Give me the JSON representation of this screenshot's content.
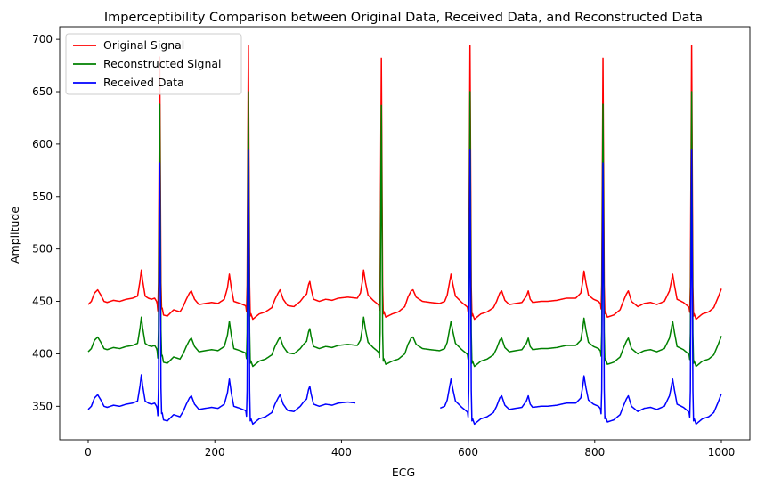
{
  "chart_data": {
    "type": "line",
    "title": "Imperceptibility Comparison between Original Data, Received  Data, and Reconstructed Data",
    "xlabel": "ECG",
    "ylabel": "Amplitude",
    "xlim": [
      -45,
      1045
    ],
    "ylim": [
      318,
      712
    ],
    "xticks": [
      0,
      200,
      400,
      600,
      800,
      1000
    ],
    "yticks": [
      350,
      400,
      450,
      500,
      550,
      600,
      650,
      700
    ],
    "grid": false,
    "legend_position": "top-left",
    "series": [
      {
        "name": "Original Signal",
        "color": "#ff0000",
        "offset": 100,
        "peaks": [
          [
            113,
            683
          ],
          [
            253,
            694
          ],
          [
            463,
            682
          ],
          [
            603,
            694
          ],
          [
            813,
            682
          ],
          [
            953,
            694
          ]
        ],
        "gaps": []
      },
      {
        "name": "Reconstructed Signal",
        "color": "#008000",
        "offset": 55,
        "peaks": [
          [
            113,
            638
          ],
          [
            253,
            650
          ],
          [
            463,
            637
          ],
          [
            603,
            650
          ],
          [
            813,
            638
          ],
          [
            953,
            650
          ]
        ],
        "gaps": []
      },
      {
        "name": "Received Data",
        "color": "#0000ff",
        "offset": 0,
        "peaks": [
          [
            113,
            582
          ],
          [
            253,
            595
          ],
          [
            603,
            595
          ],
          [
            813,
            582
          ],
          [
            953,
            595
          ]
        ],
        "gaps": [
          [
            422,
            556
          ]
        ]
      }
    ],
    "baseline_points": [
      [
        0,
        347
      ],
      [
        5,
        350
      ],
      [
        10,
        358
      ],
      [
        15,
        361
      ],
      [
        20,
        356
      ],
      [
        25,
        350
      ],
      [
        30,
        349
      ],
      [
        40,
        351
      ],
      [
        50,
        350
      ],
      [
        60,
        352
      ],
      [
        70,
        353
      ],
      [
        78,
        355
      ],
      [
        82,
        370
      ],
      [
        84,
        380
      ],
      [
        86,
        370
      ],
      [
        90,
        355
      ],
      [
        95,
        353
      ],
      [
        100,
        352
      ],
      [
        105,
        353
      ],
      [
        108,
        350
      ],
      [
        110,
        345
      ],
      [
        116,
        347
      ],
      [
        119,
        337
      ],
      [
        125,
        336
      ],
      [
        135,
        342
      ],
      [
        145,
        340
      ],
      [
        150,
        345
      ],
      [
        155,
        352
      ],
      [
        160,
        358
      ],
      [
        163,
        360
      ],
      [
        168,
        352
      ],
      [
        175,
        347
      ],
      [
        185,
        348
      ],
      [
        195,
        349
      ],
      [
        205,
        348
      ],
      [
        215,
        352
      ],
      [
        220,
        363
      ],
      [
        223,
        376
      ],
      [
        226,
        363
      ],
      [
        230,
        350
      ],
      [
        240,
        348
      ],
      [
        248,
        346
      ],
      [
        256,
        340
      ],
      [
        260,
        333
      ],
      [
        270,
        338
      ],
      [
        280,
        340
      ],
      [
        290,
        344
      ],
      [
        295,
        352
      ],
      [
        300,
        358
      ],
      [
        303,
        361
      ],
      [
        308,
        352
      ],
      [
        315,
        346
      ],
      [
        325,
        345
      ],
      [
        335,
        350
      ],
      [
        340,
        354
      ],
      [
        345,
        357
      ],
      [
        348,
        366
      ],
      [
        350,
        369
      ],
      [
        352,
        362
      ],
      [
        356,
        352
      ],
      [
        365,
        350
      ],
      [
        375,
        352
      ],
      [
        385,
        351
      ],
      [
        395,
        353
      ],
      [
        410,
        354
      ],
      [
        425,
        353
      ],
      [
        430,
        358
      ],
      [
        433,
        369
      ],
      [
        435,
        380
      ],
      [
        438,
        368
      ],
      [
        442,
        356
      ],
      [
        450,
        351
      ],
      [
        456,
        348
      ],
      [
        466,
        342
      ],
      [
        470,
        335
      ],
      [
        480,
        338
      ],
      [
        490,
        340
      ],
      [
        500,
        345
      ],
      [
        505,
        354
      ],
      [
        510,
        360
      ],
      [
        513,
        361
      ],
      [
        518,
        354
      ],
      [
        528,
        350
      ],
      [
        540,
        349
      ],
      [
        555,
        348
      ],
      [
        563,
        350
      ],
      [
        567,
        356
      ],
      [
        570,
        366
      ],
      [
        573,
        376
      ],
      [
        576,
        366
      ],
      [
        580,
        355
      ],
      [
        590,
        349
      ],
      [
        598,
        345
      ],
      [
        606,
        340
      ],
      [
        610,
        333
      ],
      [
        620,
        338
      ],
      [
        630,
        340
      ],
      [
        640,
        344
      ],
      [
        645,
        350
      ],
      [
        650,
        358
      ],
      [
        653,
        360
      ],
      [
        658,
        351
      ],
      [
        665,
        347
      ],
      [
        675,
        348
      ],
      [
        685,
        349
      ],
      [
        692,
        355
      ],
      [
        695,
        360
      ],
      [
        698,
        352
      ],
      [
        702,
        349
      ],
      [
        715,
        350
      ],
      [
        725,
        350
      ],
      [
        740,
        351
      ],
      [
        755,
        353
      ],
      [
        770,
        353
      ],
      [
        778,
        358
      ],
      [
        781,
        369
      ],
      [
        783,
        379
      ],
      [
        786,
        368
      ],
      [
        790,
        356
      ],
      [
        798,
        352
      ],
      [
        806,
        350
      ],
      [
        816,
        342
      ],
      [
        820,
        335
      ],
      [
        830,
        337
      ],
      [
        840,
        342
      ],
      [
        845,
        350
      ],
      [
        850,
        357
      ],
      [
        853,
        360
      ],
      [
        858,
        350
      ],
      [
        868,
        345
      ],
      [
        878,
        348
      ],
      [
        888,
        349
      ],
      [
        898,
        347
      ],
      [
        910,
        350
      ],
      [
        918,
        360
      ],
      [
        921,
        369
      ],
      [
        923,
        376
      ],
      [
        926,
        365
      ],
      [
        930,
        352
      ],
      [
        940,
        349
      ],
      [
        946,
        346
      ],
      [
        956,
        340
      ],
      [
        960,
        333
      ],
      [
        970,
        338
      ],
      [
        980,
        340
      ],
      [
        988,
        344
      ],
      [
        995,
        354
      ],
      [
        1000,
        362
      ]
    ]
  }
}
